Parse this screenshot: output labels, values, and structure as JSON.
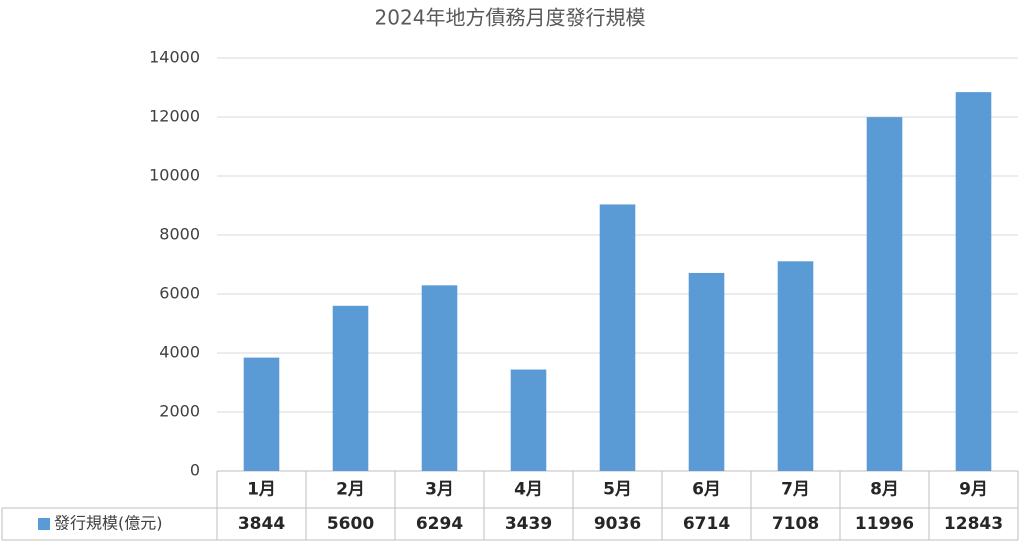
{
  "chart_data": {
    "type": "bar",
    "title": "2024年地方債務月度發行規模",
    "categories": [
      "1月",
      "2月",
      "3月",
      "4月",
      "5月",
      "6月",
      "7月",
      "8月",
      "9月"
    ],
    "series": [
      {
        "name": "發行規模(億元)",
        "color": "#5b9bd5",
        "values": [
          3844,
          5600,
          6294,
          3439,
          9036,
          6714,
          7108,
          11996,
          12843
        ]
      }
    ],
    "ylim": [
      0,
      14000
    ],
    "yticks": [
      0,
      2000,
      4000,
      6000,
      8000,
      10000,
      12000,
      14000
    ],
    "grid": true,
    "legend": "table"
  }
}
